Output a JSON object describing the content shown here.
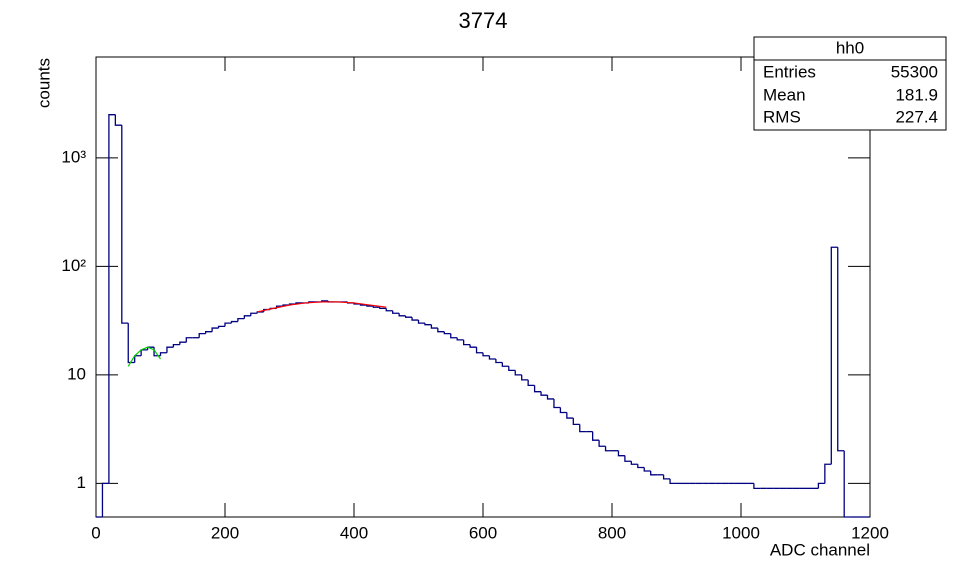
{
  "chart_data": {
    "type": "histogram",
    "title": "3774",
    "x_label": "ADC channel",
    "y_label": "counts",
    "color": "#000080",
    "log_y": true,
    "xlim": [
      0,
      1200
    ],
    "ylim": [
      0.49,
      8500
    ],
    "xticks": [
      0,
      200,
      400,
      600,
      800,
      1000,
      1200
    ],
    "yticks": [
      1,
      10,
      {
        "value": 100,
        "label": "10²"
      },
      {
        "value": 1000,
        "label": "10³"
      }
    ],
    "bins": [
      0,
      10,
      20,
      30,
      40,
      50,
      60,
      70,
      80,
      90,
      100,
      110,
      120,
      130,
      140,
      150,
      160,
      170,
      180,
      190,
      200,
      210,
      220,
      230,
      240,
      250,
      260,
      270,
      280,
      290,
      300,
      310,
      320,
      330,
      340,
      350,
      360,
      370,
      380,
      390,
      400,
      410,
      420,
      430,
      440,
      450,
      460,
      470,
      480,
      490,
      500,
      510,
      520,
      530,
      540,
      550,
      560,
      570,
      580,
      590,
      600,
      610,
      620,
      630,
      640,
      650,
      660,
      670,
      680,
      690,
      700,
      710,
      720,
      730,
      740,
      750,
      760,
      770,
      780,
      790,
      800,
      810,
      820,
      830,
      840,
      850,
      860,
      870,
      880,
      890,
      900,
      910,
      920,
      930,
      940,
      950,
      960,
      970,
      980,
      990,
      1000,
      1010,
      1020,
      1030,
      1040,
      1050,
      1060,
      1070,
      1080,
      1090,
      1100,
      1110,
      1120,
      1130,
      1140,
      1150,
      1160,
      1170,
      1180,
      1190,
      1200
    ],
    "values": [
      0,
      1,
      2500,
      2000,
      30,
      13,
      15,
      17,
      18,
      15,
      16,
      18,
      19,
      20,
      22,
      22,
      24,
      25,
      27,
      28,
      30,
      31,
      33,
      35,
      37,
      38,
      40,
      41,
      43,
      44,
      45,
      46,
      46,
      47,
      47,
      48,
      47,
      47,
      47,
      46,
      45,
      44,
      43,
      42,
      41,
      39,
      37,
      35,
      34,
      32,
      30,
      29,
      27,
      25,
      24,
      22,
      21,
      19,
      18,
      16,
      15,
      14,
      13,
      12,
      11,
      10,
      9,
      8,
      7,
      6.5,
      6,
      5,
      4.5,
      4,
      3.5,
      3,
      3,
      2.5,
      2.2,
      2,
      2,
      1.8,
      1.6,
      1.5,
      1.4,
      1.3,
      1.2,
      1.2,
      1.1,
      1,
      1,
      1,
      1,
      1,
      1,
      1,
      1,
      1,
      1,
      1,
      1,
      1,
      0.9,
      0.9,
      0.9,
      0.9,
      0.9,
      0.9,
      0.9,
      0.9,
      0.9,
      0.9,
      1,
      1.5,
      150,
      2,
      0,
      0,
      0,
      0
    ],
    "fits": [
      {
        "color": "#00cc00",
        "x": [
          50,
          60,
          70,
          80,
          90,
          100
        ],
        "values": [
          12,
          15,
          17,
          18,
          17,
          14
        ]
      },
      {
        "color": "#ff0000",
        "x": [
          250,
          275,
          300,
          325,
          350,
          375,
          400,
          425,
          450
        ],
        "values": [
          38,
          41,
          44,
          46,
          47,
          47,
          46,
          44,
          42
        ]
      }
    ],
    "stats": {
      "name": "hh0",
      "rows": [
        [
          "Entries",
          "55300"
        ],
        [
          "Mean",
          "181.9"
        ],
        [
          "RMS",
          "227.4"
        ]
      ]
    }
  }
}
